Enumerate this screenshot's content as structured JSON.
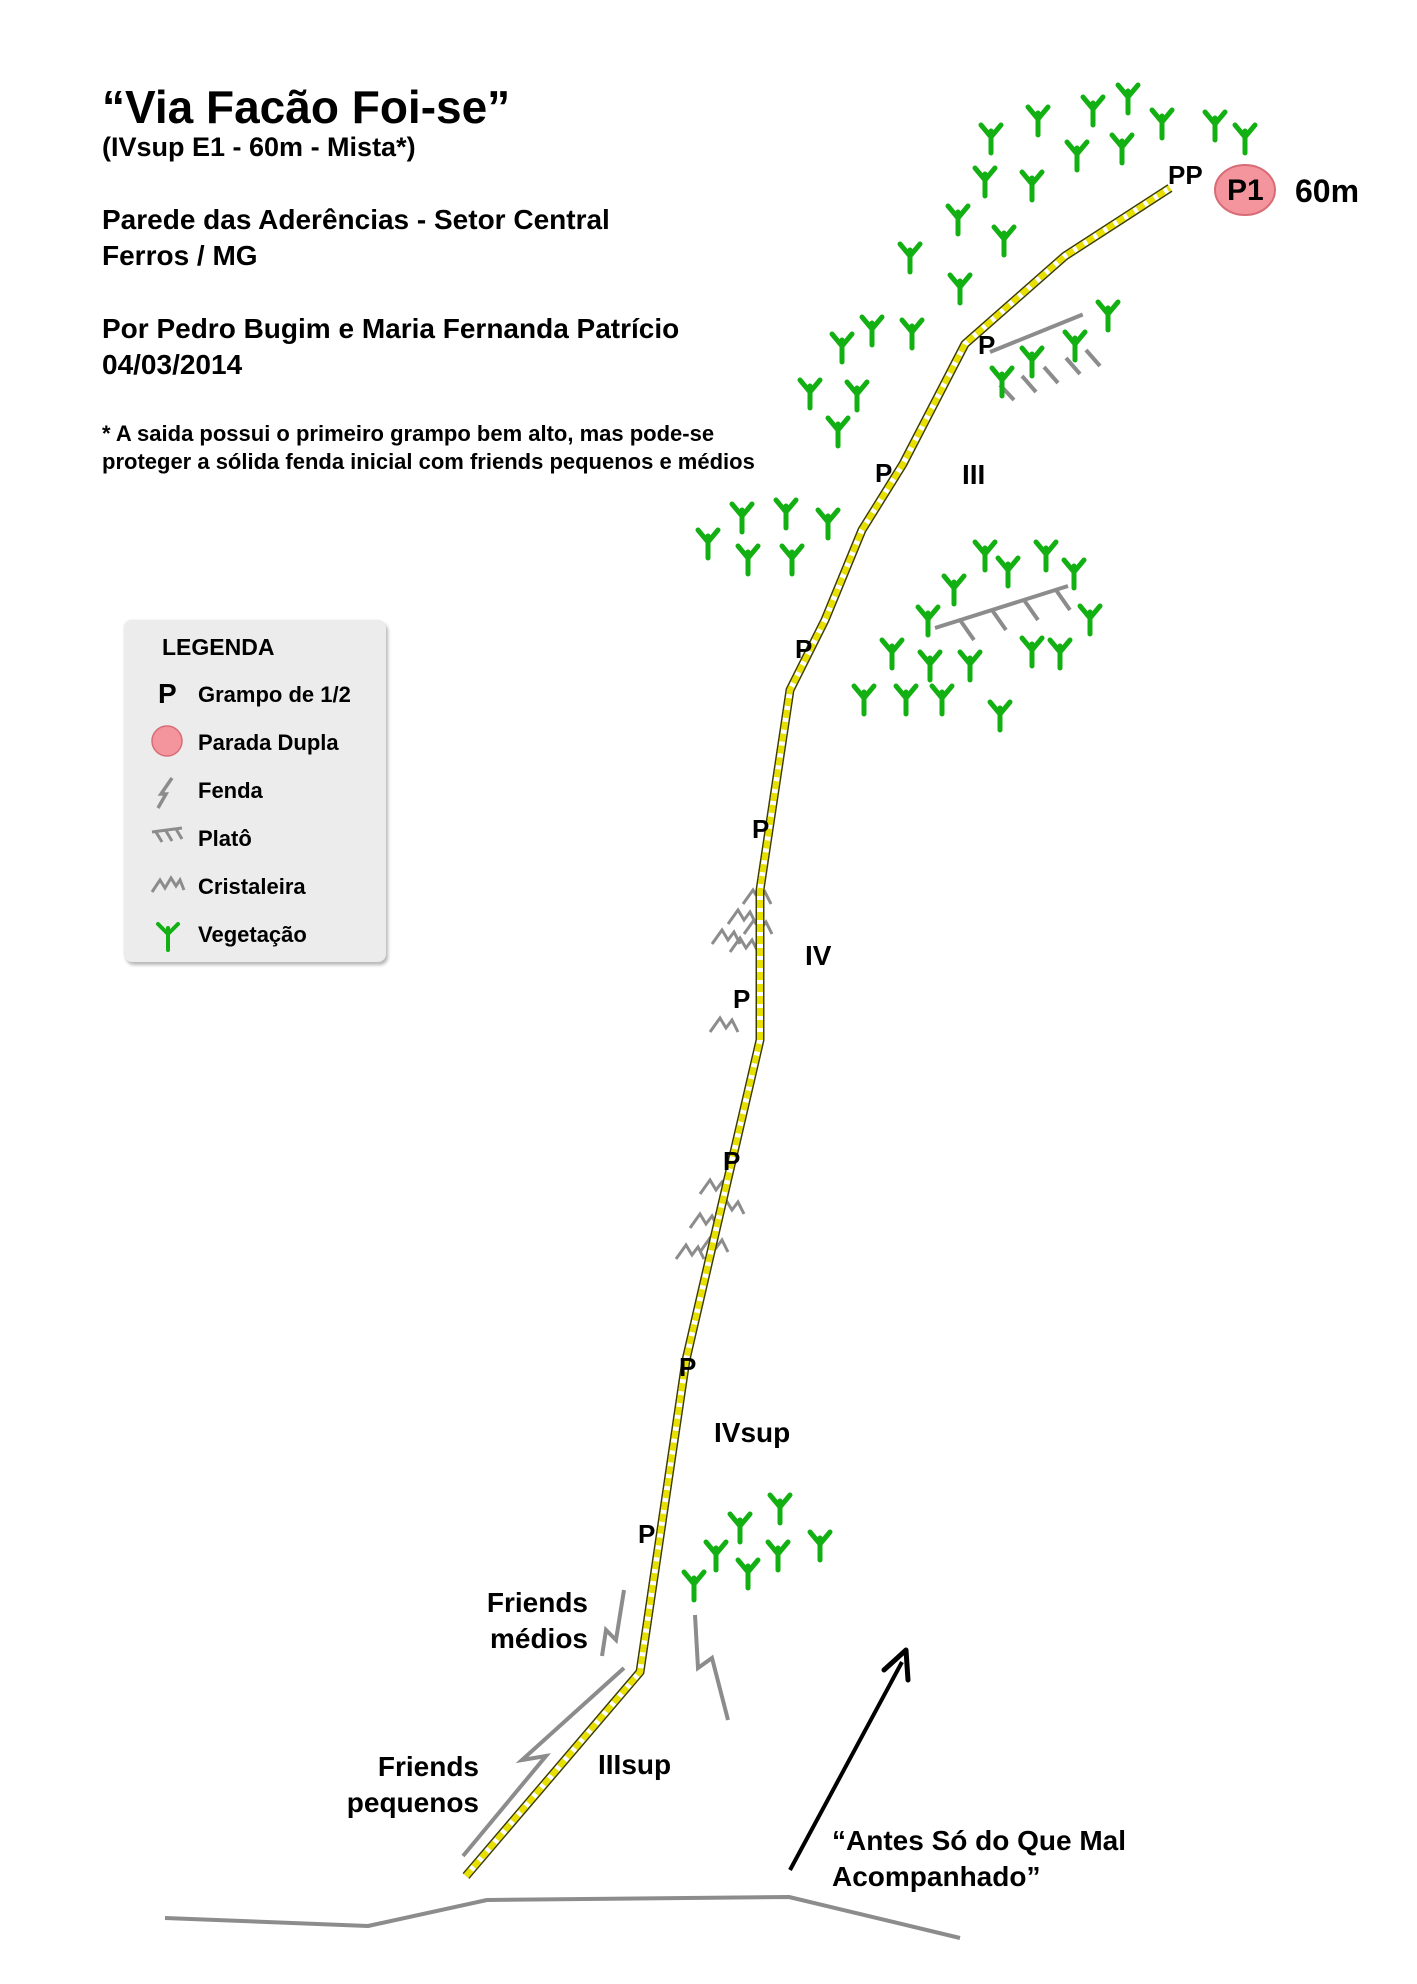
{
  "header": {
    "title": "“Via Facão Foi-se”",
    "subtitle": "(IVsup E1 - 60m - Mista*)",
    "wall": "Parede das Aderências - Setor Central",
    "place": "Ferros / MG",
    "authors": "Por Pedro Bugim e Maria Fernanda Patrício",
    "date": "04/03/2014",
    "note_line1": "* A saida possui o primeiro grampo bem alto, mas pode-se",
    "note_line2": "proteger a sólida fenda inicial com friends pequenos e médios"
  },
  "legend": {
    "title": "LEGENDA",
    "items": [
      {
        "symbol": "P",
        "label": "Grampo de 1/2"
      },
      {
        "symbol": "anchor-dot",
        "label": "Parada Dupla"
      },
      {
        "symbol": "crack-icon",
        "label": "Fenda"
      },
      {
        "symbol": "ledge-icon",
        "label": "Platô"
      },
      {
        "symbol": "crystal-icon",
        "label": "Cristaleira"
      },
      {
        "symbol": "plant-icon",
        "label": "Vegetação"
      }
    ]
  },
  "topo": {
    "bolt_label": "P",
    "double_bolt_label": "PP",
    "anchor": {
      "label": "P1",
      "height": "60m"
    },
    "grades": [
      "III",
      "IV",
      "IVsup",
      "IIIsup"
    ],
    "friends_medium": [
      "Friends",
      "médios"
    ],
    "friends_small": [
      "Friends",
      "pequenos"
    ],
    "neighbor_route": [
      "“Antes Só do Que Mal",
      "Acompanhado”"
    ]
  },
  "colors": {
    "route_yellow": "#e8e000",
    "route_outline": "#3c3c00",
    "vegetation_green": "#12b012",
    "anchor_pink": "#f4949c",
    "feature_gray": "#8c8c8c",
    "legend_bg": "#ececec"
  }
}
